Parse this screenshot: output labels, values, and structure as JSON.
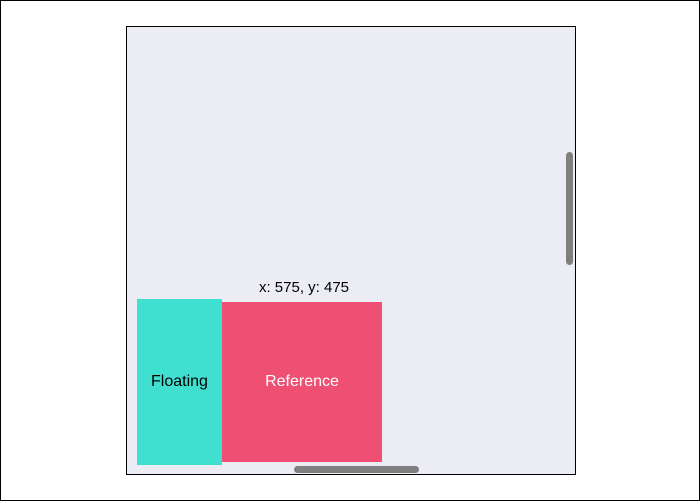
{
  "coordinates": {
    "text": "x: 575, y: 475"
  },
  "floating": {
    "label": "Floating"
  },
  "reference": {
    "label": "Reference"
  },
  "colors": {
    "container_background": "#ecedf4",
    "floating": "#40e0d0",
    "reference": "#ee4f72",
    "scrollbar": "#7f7f7f"
  }
}
